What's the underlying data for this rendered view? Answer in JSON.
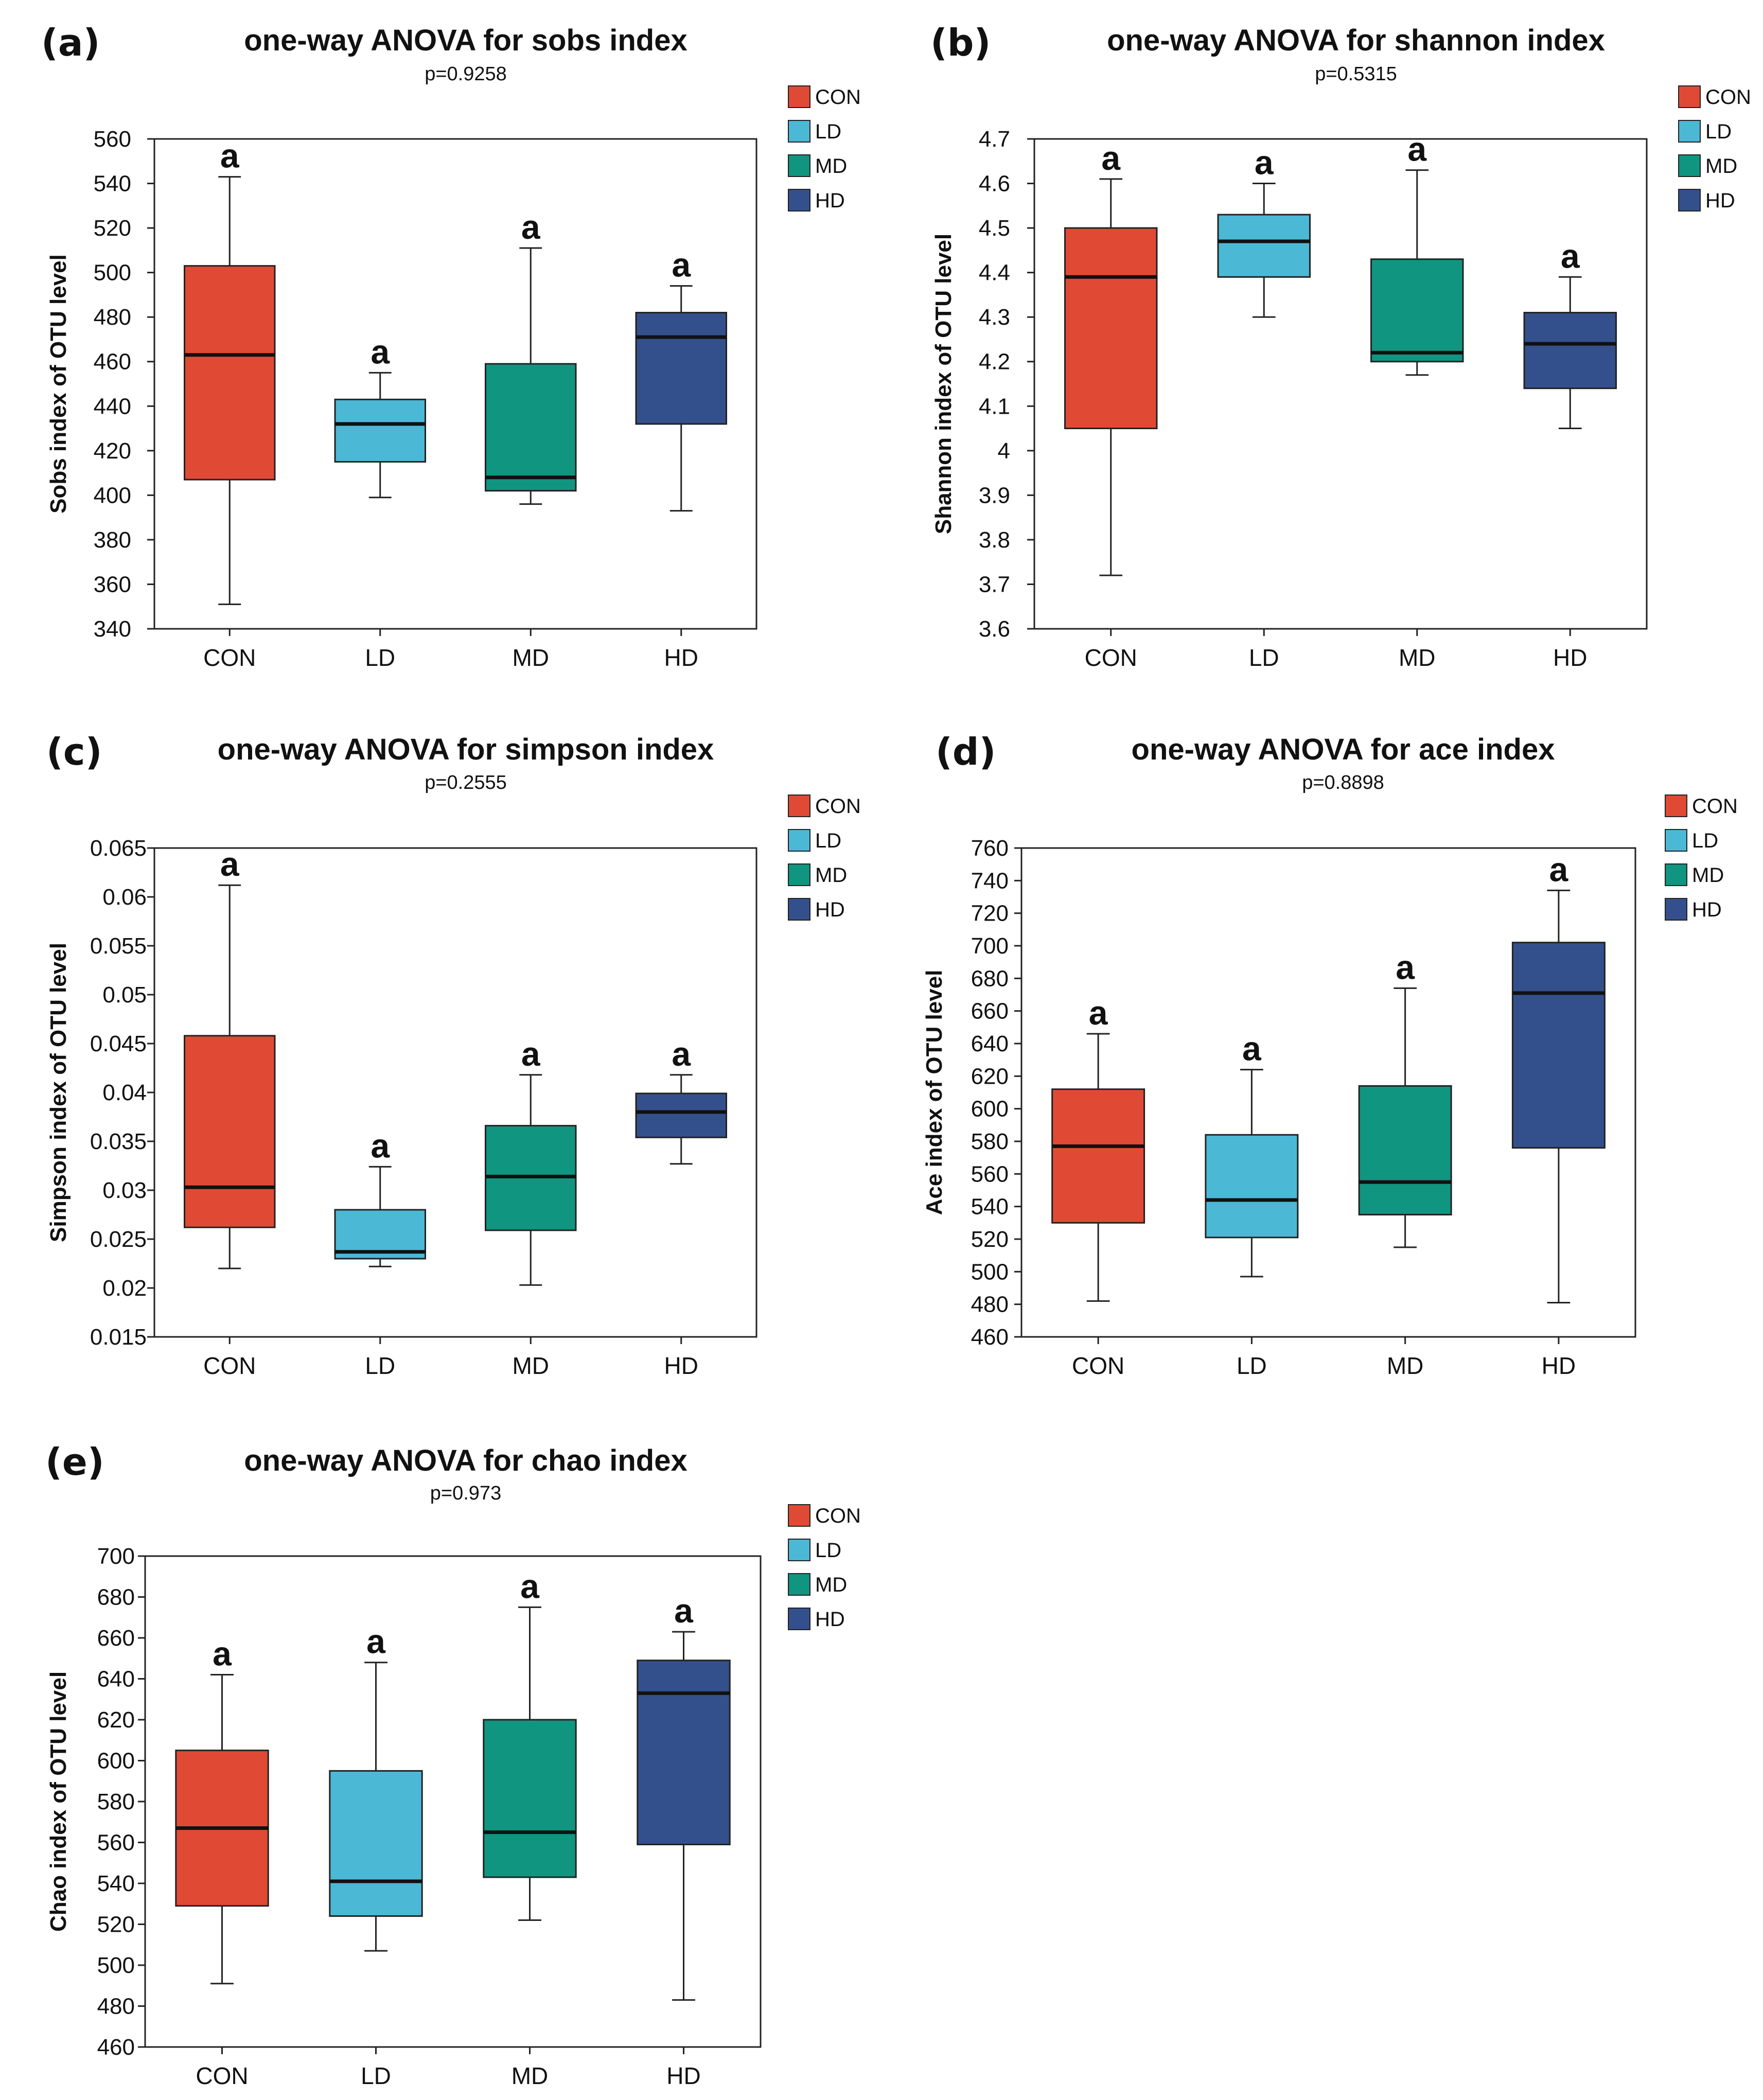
{
  "groups": [
    "CON",
    "LD",
    "MD",
    "HD"
  ],
  "group_colors": {
    "CON": "#e04a35",
    "LD": "#4bb8d6",
    "MD": "#0f9580",
    "HD": "#34508c"
  },
  "chart_data": [
    {
      "type": "boxplot",
      "panel": "(a)",
      "title": "one-way ANOVA for sobs index",
      "subtitle": "p=0.9258",
      "ylabel": "Sobs index of OTU level",
      "xlabel": "",
      "ylim": [
        340,
        560
      ],
      "yticks": [
        340,
        360,
        380,
        400,
        420,
        440,
        460,
        480,
        500,
        520,
        540,
        560
      ],
      "ytick_labels": [
        "340",
        "360",
        "380",
        "400",
        "420",
        "440",
        "460",
        "480",
        "500",
        "520",
        "540",
        "560"
      ],
      "categories": [
        "CON",
        "LD",
        "MD",
        "HD"
      ],
      "boxes": [
        {
          "name": "CON",
          "min": 351,
          "q1": 407,
          "median": 463,
          "q3": 503,
          "max": 543,
          "label": "a"
        },
        {
          "name": "LD",
          "min": 399,
          "q1": 415,
          "median": 432,
          "q3": 443,
          "max": 455,
          "label": "a"
        },
        {
          "name": "MD",
          "min": 396,
          "q1": 402,
          "median": 408,
          "q3": 459,
          "max": 511,
          "label": "a"
        },
        {
          "name": "HD",
          "min": 393,
          "q1": 432,
          "median": 471,
          "q3": 482,
          "max": 494,
          "label": "a"
        }
      ],
      "legend": [
        "CON",
        "LD",
        "MD",
        "HD"
      ],
      "legend_position": "top-right-outside"
    },
    {
      "type": "boxplot",
      "panel": "(b)",
      "title": "one-way ANOVA for shannon index",
      "subtitle": "p=0.5315",
      "ylabel": "Shannon index of OTU level",
      "xlabel": "",
      "ylim": [
        3.6,
        4.7
      ],
      "yticks": [
        3.6,
        3.7,
        3.8,
        3.9,
        4.0,
        4.1,
        4.2,
        4.3,
        4.4,
        4.5,
        4.6,
        4.7
      ],
      "ytick_labels": [
        "3.6",
        "3.7",
        "3.8",
        "3.9",
        "4",
        "4.1",
        "4.2",
        "4.3",
        "4.4",
        "4.5",
        "4.6",
        "4.7"
      ],
      "categories": [
        "CON",
        "LD",
        "MD",
        "HD"
      ],
      "boxes": [
        {
          "name": "CON",
          "min": 3.72,
          "q1": 4.05,
          "median": 4.39,
          "q3": 4.5,
          "max": 4.61,
          "label": "a"
        },
        {
          "name": "LD",
          "min": 4.3,
          "q1": 4.39,
          "median": 4.47,
          "q3": 4.53,
          "max": 4.6,
          "label": "a"
        },
        {
          "name": "MD",
          "min": 4.17,
          "q1": 4.2,
          "median": 4.22,
          "q3": 4.43,
          "max": 4.63,
          "label": "a"
        },
        {
          "name": "HD",
          "min": 4.05,
          "q1": 4.14,
          "median": 4.24,
          "q3": 4.31,
          "max": 4.39,
          "label": "a"
        }
      ],
      "legend": [
        "CON",
        "LD",
        "MD",
        "HD"
      ],
      "legend_position": "top-right-outside"
    },
    {
      "type": "boxplot",
      "panel": "(c)",
      "title": "one-way ANOVA for simpson index",
      "subtitle": "p=0.2555",
      "ylabel": "Simpson index of OTU level",
      "xlabel": "",
      "ylim": [
        0.015,
        0.065
      ],
      "yticks": [
        0.015,
        0.02,
        0.025,
        0.03,
        0.035,
        0.04,
        0.045,
        0.05,
        0.055,
        0.06,
        0.065
      ],
      "ytick_labels": [
        "0.015",
        "0.02",
        "0.025",
        "0.03",
        "0.035",
        "0.04",
        "0.045",
        "0.05",
        "0.055",
        "0.06",
        "0.065"
      ],
      "categories": [
        "CON",
        "LD",
        "MD",
        "HD"
      ],
      "boxes": [
        {
          "name": "CON",
          "min": 0.022,
          "q1": 0.0262,
          "median": 0.0303,
          "q3": 0.0458,
          "max": 0.0612,
          "label": "a"
        },
        {
          "name": "LD",
          "min": 0.0222,
          "q1": 0.023,
          "median": 0.0237,
          "q3": 0.028,
          "max": 0.0324,
          "label": "a"
        },
        {
          "name": "MD",
          "min": 0.0203,
          "q1": 0.0259,
          "median": 0.0314,
          "q3": 0.0366,
          "max": 0.0418,
          "label": "a"
        },
        {
          "name": "HD",
          "min": 0.0327,
          "q1": 0.0354,
          "median": 0.038,
          "q3": 0.0399,
          "max": 0.0418,
          "label": "a"
        }
      ],
      "legend": [
        "CON",
        "LD",
        "MD",
        "HD"
      ],
      "legend_position": "top-right-outside"
    },
    {
      "type": "boxplot",
      "panel": "(d)",
      "title": "one-way ANOVA for ace index",
      "subtitle": "p=0.8898",
      "ylabel": "Ace index of OTU level",
      "xlabel": "",
      "ylim": [
        460,
        760
      ],
      "yticks": [
        460,
        480,
        500,
        520,
        540,
        560,
        580,
        600,
        620,
        640,
        660,
        680,
        700,
        720,
        740,
        760
      ],
      "ytick_labels": [
        "460",
        "480",
        "500",
        "520",
        "540",
        "560",
        "580",
        "600",
        "620",
        "640",
        "660",
        "680",
        "700",
        "720",
        "740",
        "760"
      ],
      "categories": [
        "CON",
        "LD",
        "MD",
        "HD"
      ],
      "boxes": [
        {
          "name": "CON",
          "min": 482,
          "q1": 530,
          "median": 577,
          "q3": 612,
          "max": 646,
          "label": "a"
        },
        {
          "name": "LD",
          "min": 497,
          "q1": 521,
          "median": 544,
          "q3": 584,
          "max": 624,
          "label": "a"
        },
        {
          "name": "MD",
          "min": 515,
          "q1": 535,
          "median": 555,
          "q3": 614,
          "max": 674,
          "label": "a"
        },
        {
          "name": "HD",
          "min": 481,
          "q1": 576,
          "median": 671,
          "q3": 702,
          "max": 734,
          "label": "a"
        }
      ],
      "legend": [
        "CON",
        "LD",
        "MD",
        "HD"
      ],
      "legend_position": "top-right-outside"
    },
    {
      "type": "boxplot",
      "panel": "(e)",
      "title": "one-way ANOVA for chao index",
      "subtitle": "p=0.973",
      "ylabel": "Chao index of OTU level",
      "xlabel": "",
      "ylim": [
        460,
        700
      ],
      "yticks": [
        460,
        480,
        500,
        520,
        540,
        560,
        580,
        600,
        620,
        640,
        660,
        680,
        700
      ],
      "ytick_labels": [
        "460",
        "480",
        "500",
        "520",
        "540",
        "560",
        "580",
        "600",
        "620",
        "640",
        "660",
        "680",
        "700"
      ],
      "categories": [
        "CON",
        "LD",
        "MD",
        "HD"
      ],
      "boxes": [
        {
          "name": "CON",
          "min": 491,
          "q1": 529,
          "median": 567,
          "q3": 605,
          "max": 642,
          "label": "a"
        },
        {
          "name": "LD",
          "min": 507,
          "q1": 524,
          "median": 541,
          "q3": 595,
          "max": 648,
          "label": "a"
        },
        {
          "name": "MD",
          "min": 522,
          "q1": 543,
          "median": 565,
          "q3": 620,
          "max": 675,
          "label": "a"
        },
        {
          "name": "HD",
          "min": 483,
          "q1": 559,
          "median": 633,
          "q3": 649,
          "max": 663,
          "label": "a"
        }
      ],
      "legend": [
        "CON",
        "LD",
        "MD",
        "HD"
      ],
      "legend_position": "top-right-outside"
    }
  ]
}
